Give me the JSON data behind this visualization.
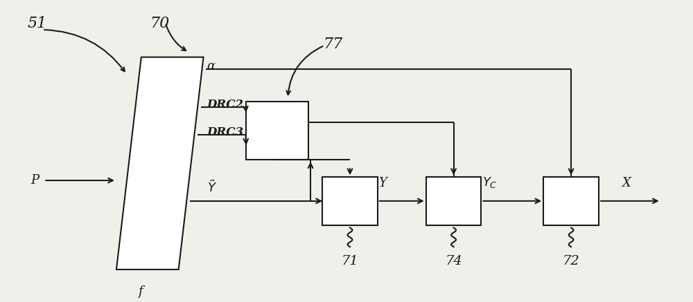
{
  "bg_color": "#f0f0eb",
  "line_color": "#1a1a1a",
  "label_51": "51",
  "label_70": "70",
  "label_77": "77",
  "label_71": "71",
  "label_74": "74",
  "label_72": "72",
  "label_alpha": "α",
  "label_DRC2": "DRC2",
  "label_DRC3": "DRC3",
  "label_P": "P",
  "label_f": "f",
  "label_Y": "Y",
  "label_X": "X"
}
